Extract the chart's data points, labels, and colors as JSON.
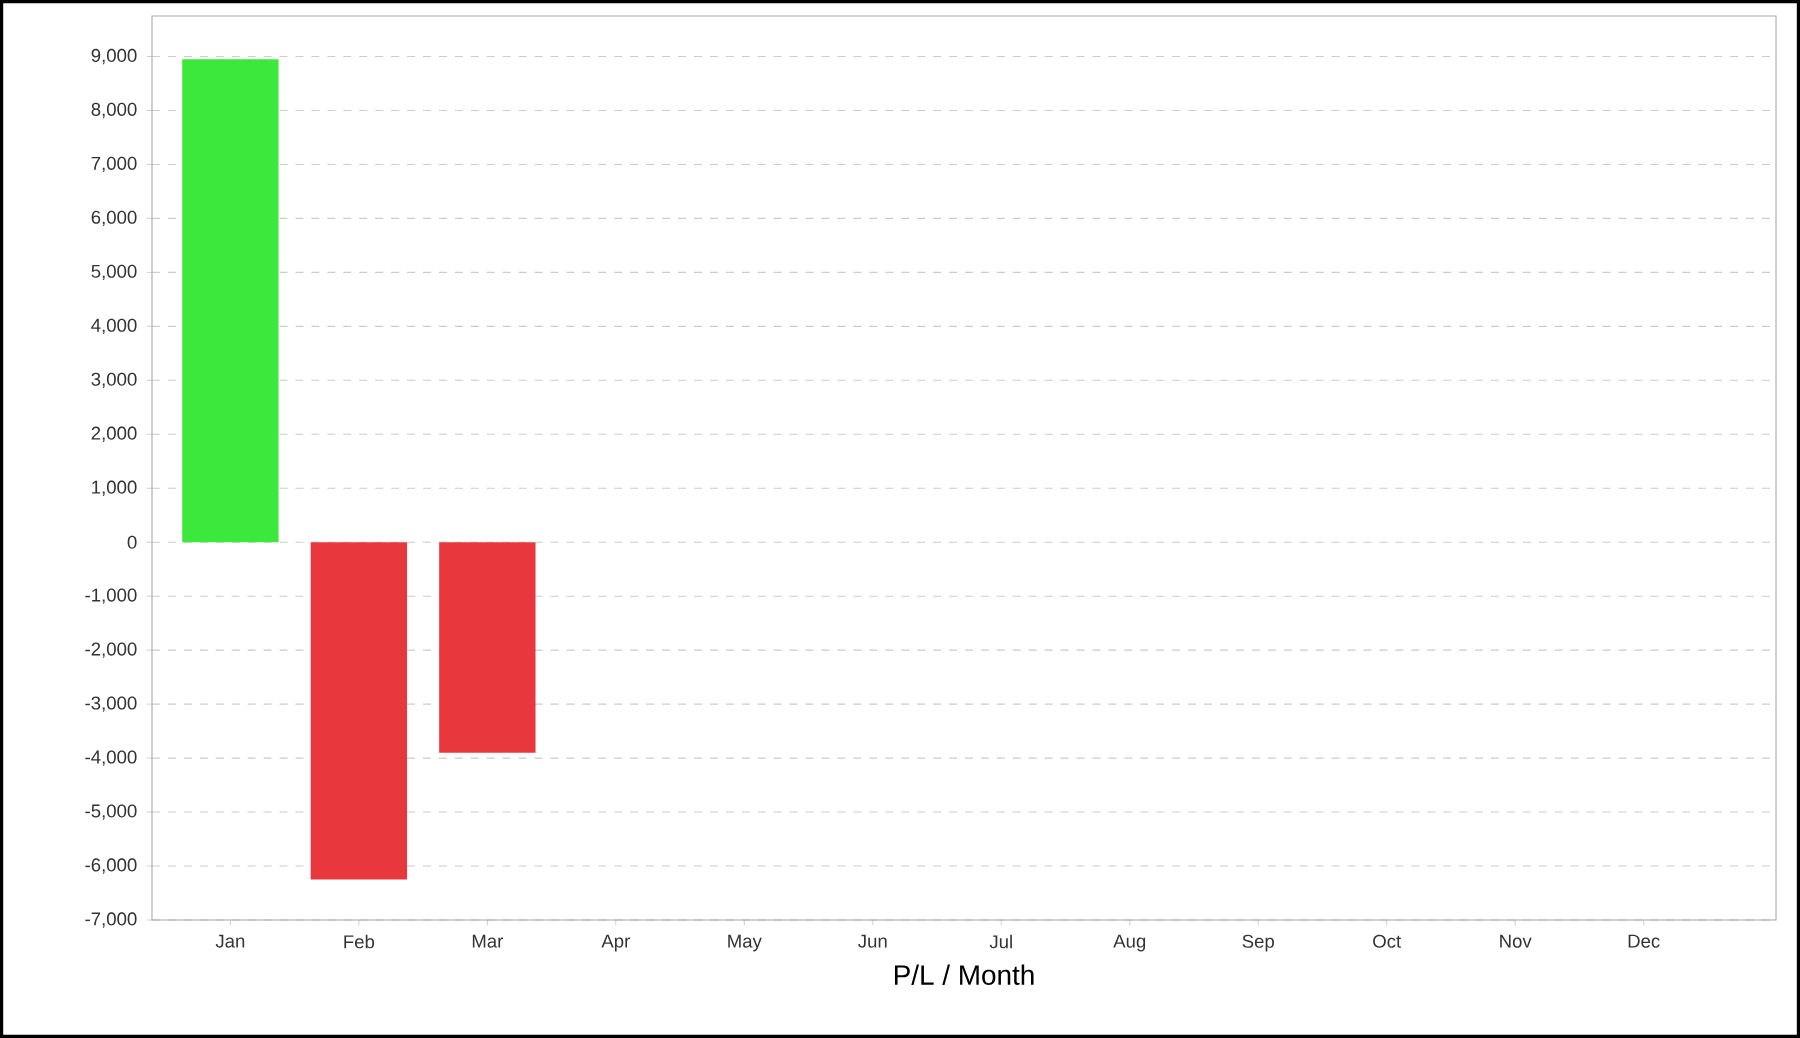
{
  "chart_data": {
    "type": "bar",
    "xlabel": "P/L / Month",
    "categories": [
      "Jan",
      "Feb",
      "Mar",
      "Apr",
      "May",
      "Jun",
      "Jul",
      "Aug",
      "Sep",
      "Oct",
      "Nov",
      "Dec"
    ],
    "values": [
      8950,
      -6250,
      -3900,
      null,
      null,
      null,
      null,
      null,
      null,
      null,
      null,
      null
    ],
    "colors": [
      "#3de83d",
      "#e8383d",
      "#e8383d",
      "#e8383d",
      "#e8383d",
      "#e8383d",
      "#e8383d",
      "#e8383d",
      "#e8383d",
      "#e8383d",
      "#e8383d",
      "#e8383d"
    ],
    "ylim": [
      -7000,
      9750
    ],
    "yticks": [
      {
        "value": -7000,
        "label": "-7,000"
      },
      {
        "value": -6000,
        "label": "-6,000"
      },
      {
        "value": -5000,
        "label": "-5,000"
      },
      {
        "value": -4000,
        "label": "-4,000"
      },
      {
        "value": -3000,
        "label": "-3,000"
      },
      {
        "value": -2000,
        "label": "-2,000"
      },
      {
        "value": -1000,
        "label": "-1,000"
      },
      0,
      {
        "value": 1000,
        "label": "1,000"
      },
      {
        "value": 2000,
        "label": "2,000"
      },
      {
        "value": 3000,
        "label": "3,000"
      },
      {
        "value": 4000,
        "label": "4,000"
      },
      {
        "value": 5000,
        "label": "5,000"
      },
      {
        "value": 6000,
        "label": "6,000"
      },
      {
        "value": 7000,
        "label": "7,000"
      },
      {
        "value": 8000,
        "label": "8,000"
      },
      {
        "value": 9000,
        "label": "9,000"
      }
    ],
    "grid": "y"
  }
}
